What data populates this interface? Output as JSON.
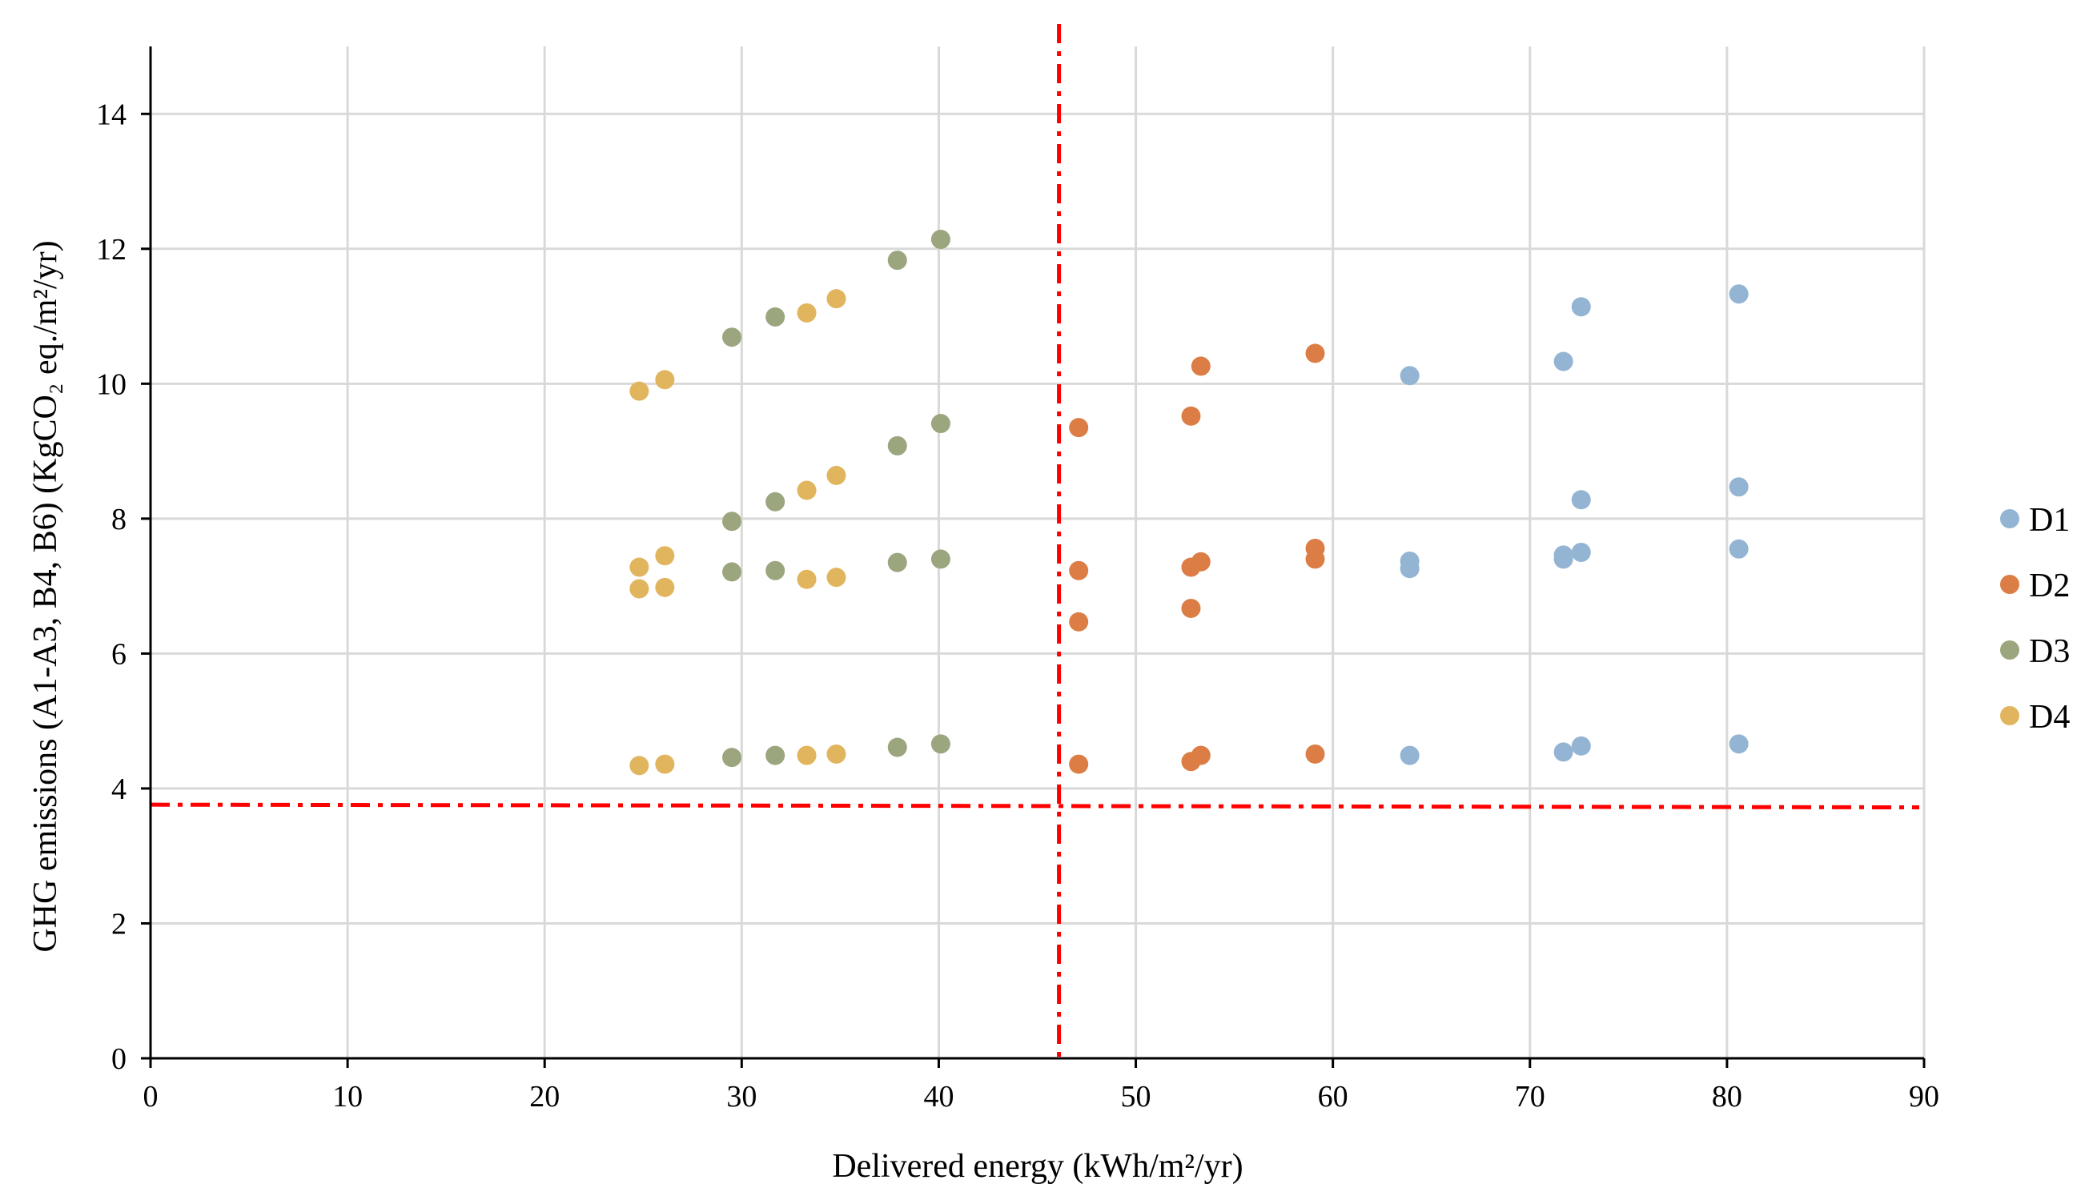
{
  "chart_data": {
    "type": "scatter",
    "xlabel": "Delivered energy (kWh/m²/yr)",
    "ylabel": "GHG emissions (A1-A3, B4, B6) (KgCO₂ eq./m²/yr)",
    "xlim": [
      0,
      90
    ],
    "ylim": [
      0,
      15
    ],
    "x_ticks": [
      0,
      10,
      20,
      30,
      40,
      50,
      60,
      70,
      80,
      90
    ],
    "y_ticks": [
      0,
      2,
      4,
      6,
      8,
      10,
      12,
      14
    ],
    "x_tick_labels": [
      "0",
      "10",
      "20",
      "30",
      "40",
      "50",
      "60",
      "70",
      "80",
      "90"
    ],
    "y_tick_labels": [
      "0",
      "2",
      "4",
      "6",
      "8",
      "10",
      "12",
      "14"
    ],
    "grid": true,
    "legend_position": "right",
    "reference_lines": [
      {
        "orientation": "vertical",
        "x": 46.1,
        "color": "#ff0000",
        "style": "dash-dot"
      },
      {
        "orientation": "horizontal",
        "y_start": 3.76,
        "y_end": 3.72,
        "color": "#ff0000",
        "style": "dash-dot"
      }
    ],
    "series": [
      {
        "name": "D1",
        "color": "#93b4d3",
        "points": [
          {
            "x": 63.9,
            "y": 10.12
          },
          {
            "x": 71.7,
            "y": 10.33
          },
          {
            "x": 72.6,
            "y": 11.14
          },
          {
            "x": 80.6,
            "y": 11.33
          },
          {
            "x": 72.6,
            "y": 8.28
          },
          {
            "x": 80.6,
            "y": 8.47
          },
          {
            "x": 63.9,
            "y": 7.37
          },
          {
            "x": 63.9,
            "y": 7.26
          },
          {
            "x": 71.7,
            "y": 7.46
          },
          {
            "x": 71.7,
            "y": 7.4
          },
          {
            "x": 72.6,
            "y": 7.5
          },
          {
            "x": 80.6,
            "y": 7.55
          },
          {
            "x": 63.9,
            "y": 4.49
          },
          {
            "x": 71.7,
            "y": 4.54
          },
          {
            "x": 72.6,
            "y": 4.63
          },
          {
            "x": 80.6,
            "y": 4.66
          }
        ]
      },
      {
        "name": "D2",
        "color": "#db7d45",
        "points": [
          {
            "x": 47.1,
            "y": 9.35
          },
          {
            "x": 52.8,
            "y": 9.52
          },
          {
            "x": 53.3,
            "y": 10.26
          },
          {
            "x": 59.1,
            "y": 10.45
          },
          {
            "x": 47.1,
            "y": 7.23
          },
          {
            "x": 52.8,
            "y": 7.28
          },
          {
            "x": 53.3,
            "y": 7.36
          },
          {
            "x": 59.1,
            "y": 7.56
          },
          {
            "x": 59.1,
            "y": 7.4
          },
          {
            "x": 47.1,
            "y": 6.47
          },
          {
            "x": 52.8,
            "y": 6.67
          },
          {
            "x": 47.1,
            "y": 4.36
          },
          {
            "x": 52.8,
            "y": 4.4
          },
          {
            "x": 53.3,
            "y": 4.49
          },
          {
            "x": 59.1,
            "y": 4.51
          }
        ]
      },
      {
        "name": "D3",
        "color": "#9ba57e",
        "points": [
          {
            "x": 29.5,
            "y": 10.69
          },
          {
            "x": 31.7,
            "y": 10.99
          },
          {
            "x": 37.9,
            "y": 11.83
          },
          {
            "x": 40.1,
            "y": 12.14
          },
          {
            "x": 29.5,
            "y": 7.96
          },
          {
            "x": 31.7,
            "y": 8.25
          },
          {
            "x": 37.9,
            "y": 9.08
          },
          {
            "x": 40.1,
            "y": 9.41
          },
          {
            "x": 29.5,
            "y": 7.21
          },
          {
            "x": 31.7,
            "y": 7.23
          },
          {
            "x": 37.9,
            "y": 7.35
          },
          {
            "x": 40.1,
            "y": 7.4
          },
          {
            "x": 29.5,
            "y": 4.46
          },
          {
            "x": 31.7,
            "y": 4.49
          },
          {
            "x": 37.9,
            "y": 4.61
          },
          {
            "x": 40.1,
            "y": 4.66
          }
        ]
      },
      {
        "name": "D4",
        "color": "#e1b55d",
        "points": [
          {
            "x": 24.8,
            "y": 9.89
          },
          {
            "x": 26.1,
            "y": 10.06
          },
          {
            "x": 33.3,
            "y": 11.05
          },
          {
            "x": 34.8,
            "y": 11.26
          },
          {
            "x": 33.3,
            "y": 8.42
          },
          {
            "x": 34.8,
            "y": 8.64
          },
          {
            "x": 24.8,
            "y": 7.28
          },
          {
            "x": 26.1,
            "y": 7.45
          },
          {
            "x": 24.8,
            "y": 6.96
          },
          {
            "x": 26.1,
            "y": 6.98
          },
          {
            "x": 33.3,
            "y": 7.1
          },
          {
            "x": 34.8,
            "y": 7.13
          },
          {
            "x": 24.8,
            "y": 4.34
          },
          {
            "x": 26.1,
            "y": 4.36
          },
          {
            "x": 33.3,
            "y": 4.49
          },
          {
            "x": 34.8,
            "y": 4.51
          }
        ]
      }
    ]
  }
}
